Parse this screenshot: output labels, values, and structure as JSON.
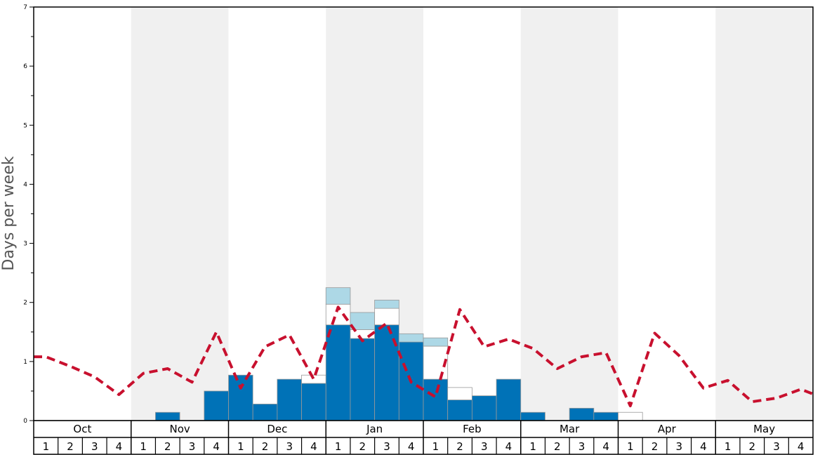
{
  "chart_data": {
    "type": "bar",
    "title": "",
    "xlabel": "",
    "ylabel": "Days per week",
    "ylim": [
      0,
      7
    ],
    "yticks": [
      0,
      1,
      2,
      3,
      4,
      5,
      6,
      7
    ],
    "months": [
      "Oct",
      "Nov",
      "Dec",
      "Jan",
      "Feb",
      "Mar",
      "Apr",
      "May"
    ],
    "week_labels": [
      "1",
      "2",
      "3",
      "4"
    ],
    "shaded_months": [
      "Nov",
      "Jan",
      "Mar",
      "May"
    ],
    "colors": {
      "main": "#0072b7",
      "white": "#ffffff",
      "light": "#add8e6",
      "line": "#c8102e",
      "band": "#f0f0f0"
    },
    "series": [
      {
        "values": [
          0,
          0,
          0,
          0,
          0,
          0.14,
          0,
          0.5,
          0.77,
          0.28,
          0.7,
          0.63,
          1.62,
          1.39,
          1.62,
          1.33,
          0.7,
          0.35,
          0.42,
          0.7,
          0.14,
          0,
          0.21,
          0.14,
          0,
          0,
          0,
          0,
          0,
          0,
          0,
          0
        ]
      },
      {
        "values": [
          0,
          0,
          0,
          0,
          0,
          0,
          0,
          0,
          0,
          0,
          0,
          0.14,
          0.35,
          0.15,
          0.28,
          0,
          0.56,
          0.21,
          0,
          0,
          0,
          0,
          0,
          0,
          0.14,
          0,
          0,
          0,
          0,
          0,
          0,
          0
        ]
      },
      {
        "values": [
          0,
          0,
          0,
          0,
          0,
          0,
          0,
          0,
          0,
          0,
          0,
          0,
          0.28,
          0.29,
          0.14,
          0.14,
          0.14,
          0,
          0,
          0,
          0,
          0,
          0,
          0,
          0,
          0,
          0,
          0,
          0,
          0,
          0,
          0
        ]
      },
      {
        "type": "line",
        "x": [
          0,
          1,
          2,
          3,
          4,
          5,
          6,
          7,
          8,
          9,
          10,
          11,
          12,
          13,
          14,
          15,
          16,
          17,
          18,
          19,
          20,
          21,
          22,
          23,
          24,
          25,
          26,
          27,
          28,
          29,
          30,
          31
        ],
        "values": [
          1.08,
          0.92,
          0.74,
          0.44,
          0.8,
          0.88,
          0.65,
          1.5,
          0.55,
          1.25,
          1.45,
          0.7,
          1.92,
          1.35,
          1.65,
          0.65,
          0.4,
          1.88,
          1.25,
          1.38,
          1.22,
          0.88,
          1.08,
          1.15,
          0.25,
          1.48,
          1.1,
          0.55,
          0.68,
          0.32,
          0.38,
          0.53
        ]
      }
    ],
    "line_end_value": 0.45
  }
}
